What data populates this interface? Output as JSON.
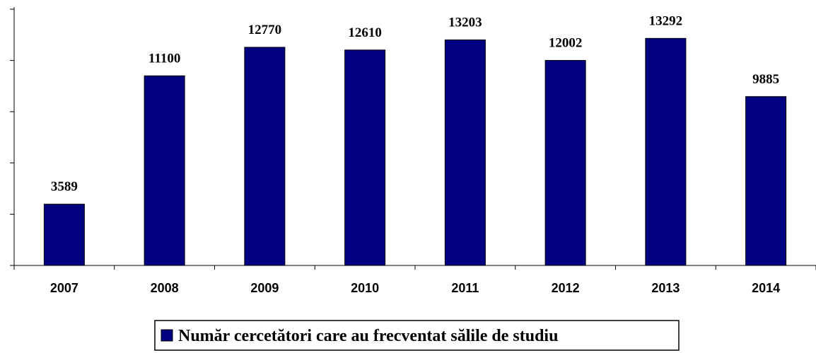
{
  "chart_data": {
    "type": "bar",
    "categories": [
      "2007",
      "2008",
      "2009",
      "2010",
      "2011",
      "2012",
      "2013",
      "2014"
    ],
    "series": [
      {
        "name": "Număr cercetători care au frecventat sălile de studiu",
        "color": "#000080",
        "values": [
          3589,
          11100,
          12770,
          12610,
          13203,
          12002,
          13292,
          9885
        ]
      }
    ],
    "ylim": [
      0,
      15000
    ],
    "yticks": [
      0,
      3000,
      6000,
      9000,
      12000,
      15000
    ],
    "legend": "bottom"
  }
}
